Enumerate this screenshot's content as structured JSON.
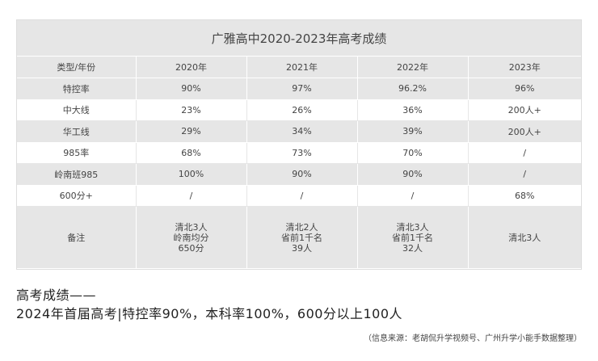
{
  "table": {
    "title": "广雅高中2020-2023年高考成绩",
    "header": [
      "类型/年份",
      "2020年",
      "2021年",
      "2022年",
      "2023年"
    ],
    "rows": [
      [
        "特控率",
        "90%",
        "97%",
        "96.2%",
        "96%"
      ],
      [
        "中大线",
        "23%",
        "26%",
        "36%",
        "200人+"
      ],
      [
        "华工线",
        "29%",
        "34%",
        "39%",
        "200人+"
      ],
      [
        "985率",
        "68%",
        "73%",
        "70%",
        "/"
      ],
      [
        "岭南班985",
        "100%",
        "90%",
        "90%",
        "/"
      ],
      [
        "600分+",
        "/",
        "/",
        "/",
        "68%"
      ]
    ],
    "note": {
      "label": "备注",
      "cells": [
        [
          "清北3人",
          "岭南均分",
          "650分"
        ],
        [
          "清北2人",
          "省前1千名",
          "39人"
        ],
        [
          "清北3人",
          "省前1千名",
          "32人"
        ],
        [
          "清北3人"
        ]
      ]
    }
  },
  "headline": {
    "line1": "高考成绩——",
    "line2": "2024年首届高考|特控率90%，本科率100%，600分以上100人"
  },
  "source": "（信息来源：老胡侃升学视频号、广州升学小能手数据整理）"
}
